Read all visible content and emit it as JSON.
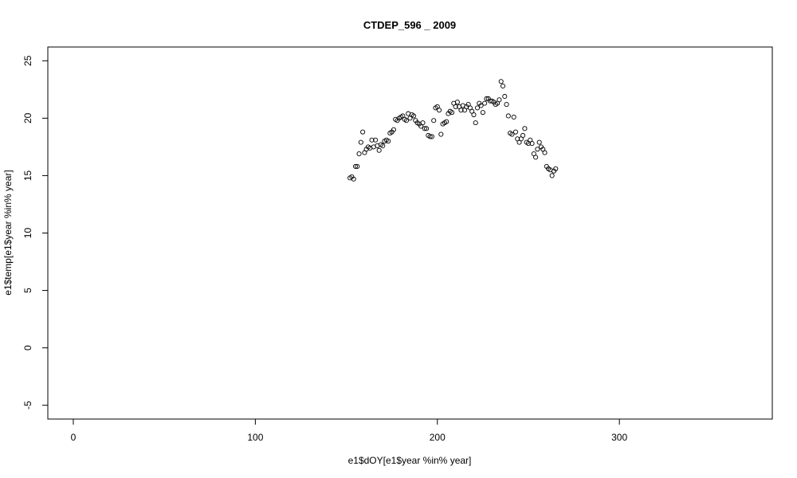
{
  "chart_data": {
    "type": "scatter",
    "title": "CTDEP_596 _ 2009",
    "xlabel": "e1$dOY[e1$year %in% year]",
    "ylabel": "e1$temp[e1$year %in% year]",
    "xlim": [
      -14,
      384
    ],
    "ylim": [
      -6.2,
      26.2
    ],
    "xticks": [
      0,
      100,
      200,
      300
    ],
    "yticks": [
      -5,
      0,
      5,
      10,
      15,
      20,
      25
    ],
    "xtick_labels": [
      "0",
      "100",
      "200",
      "300"
    ],
    "ytick_labels": [
      "-5",
      "0",
      "5",
      "10",
      "15",
      "20",
      "25"
    ],
    "grid": false,
    "marker": "open-circle",
    "x": [
      152,
      153,
      154,
      155,
      156,
      157,
      158,
      159,
      160,
      161,
      162,
      163,
      164,
      165,
      166,
      167,
      168,
      169,
      170,
      171,
      172,
      173,
      174,
      175,
      176,
      177,
      178,
      179,
      180,
      181,
      182,
      183,
      184,
      185,
      186,
      187,
      188,
      189,
      190,
      191,
      192,
      193,
      194,
      195,
      196,
      197,
      198,
      199,
      200,
      201,
      202,
      203,
      204,
      205,
      206,
      207,
      208,
      209,
      210,
      211,
      212,
      213,
      214,
      215,
      216,
      217,
      218,
      219,
      220,
      221,
      222,
      223,
      224,
      225,
      226,
      227,
      228,
      229,
      230,
      231,
      232,
      233,
      234,
      235,
      236,
      237,
      238,
      239,
      240,
      241,
      242,
      243,
      244,
      245,
      246,
      247,
      248,
      249,
      250,
      251,
      252,
      253,
      254,
      255,
      256,
      257,
      258,
      259,
      260,
      261,
      262,
      263,
      264,
      265
    ],
    "y": [
      14.8,
      14.9,
      14.7,
      15.8,
      15.8,
      16.9,
      17.9,
      18.8,
      17.0,
      17.3,
      17.5,
      17.4,
      18.1,
      17.5,
      18.1,
      17.6,
      17.2,
      17.7,
      17.6,
      18.0,
      18.1,
      18.0,
      18.7,
      18.8,
      19.0,
      19.9,
      19.8,
      20.0,
      20.1,
      20.2,
      19.9,
      19.8,
      20.4,
      20.0,
      20.3,
      20.2,
      19.8,
      19.6,
      19.5,
      19.3,
      19.6,
      19.1,
      19.1,
      18.5,
      18.4,
      18.4,
      19.8,
      20.9,
      21.0,
      20.7,
      18.6,
      19.5,
      19.6,
      19.7,
      20.4,
      20.6,
      20.5,
      21.3,
      21.0,
      21.4,
      21.0,
      20.7,
      21.1,
      20.7,
      21.0,
      21.2,
      20.9,
      20.6,
      20.3,
      19.6,
      20.9,
      21.3,
      21.1,
      20.5,
      21.3,
      21.7,
      21.7,
      21.5,
      21.5,
      21.4,
      21.2,
      21.3,
      21.6,
      23.2,
      22.8,
      21.9,
      21.2,
      20.2,
      18.7,
      18.6,
      20.1,
      18.8,
      18.2,
      17.9,
      18.2,
      18.5,
      19.1,
      17.9,
      17.8,
      18.1,
      17.8,
      16.9,
      16.6,
      17.3,
      17.9,
      17.5,
      17.3,
      17.0,
      15.8,
      15.6,
      15.5,
      15.0,
      15.4,
      15.6
    ]
  }
}
